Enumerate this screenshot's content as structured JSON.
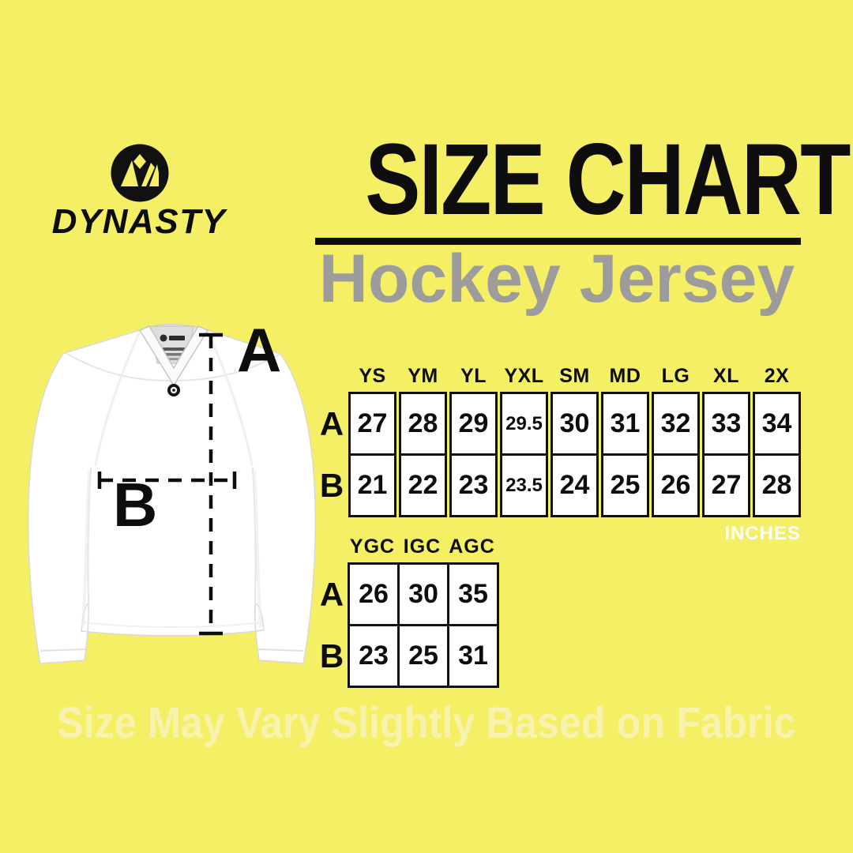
{
  "brand": {
    "name": "DYNASTY",
    "logo_icon": "dynasty-crown-logo",
    "logo_color": "#111111"
  },
  "header": {
    "title": "SIZE CHART",
    "subtitle": "Hockey Jersey"
  },
  "diagram": {
    "item": "white hockey jersey front view",
    "measure_a_label": "A",
    "measure_b_label": "B",
    "measure_a_meaning": "vertical length line",
    "measure_b_meaning": "horizontal chest width line"
  },
  "chart_data": [
    {
      "type": "table",
      "name": "hockey-jersey-sizes",
      "unit": "INCHES",
      "columns": [
        "YS",
        "YM",
        "YL",
        "YXL",
        "SM",
        "MD",
        "LG",
        "XL",
        "2X"
      ],
      "rows": [
        {
          "label": "A",
          "values": [
            "27",
            "28",
            "29",
            "29.5",
            "30",
            "31",
            "32",
            "33",
            "34"
          ]
        },
        {
          "label": "B",
          "values": [
            "21",
            "22",
            "23",
            "23.5",
            "24",
            "25",
            "26",
            "27",
            "28"
          ]
        }
      ]
    },
    {
      "type": "table",
      "name": "goalie-cut-sizes",
      "columns": [
        "YGC",
        "IGC",
        "AGC"
      ],
      "rows": [
        {
          "label": "A",
          "values": [
            "26",
            "30",
            "35"
          ]
        },
        {
          "label": "B",
          "values": [
            "23",
            "25",
            "31"
          ]
        }
      ]
    }
  ],
  "footnote": "Size May Vary Slightly Based on Fabric",
  "colors": {
    "background": "#f4ef64",
    "ink": "#0d0d0d",
    "subtitle_gray": "#9c9c9c",
    "cell_fill": "#ffffff",
    "unit_text": "#ffffff",
    "watermark": "#f7f3ae"
  }
}
